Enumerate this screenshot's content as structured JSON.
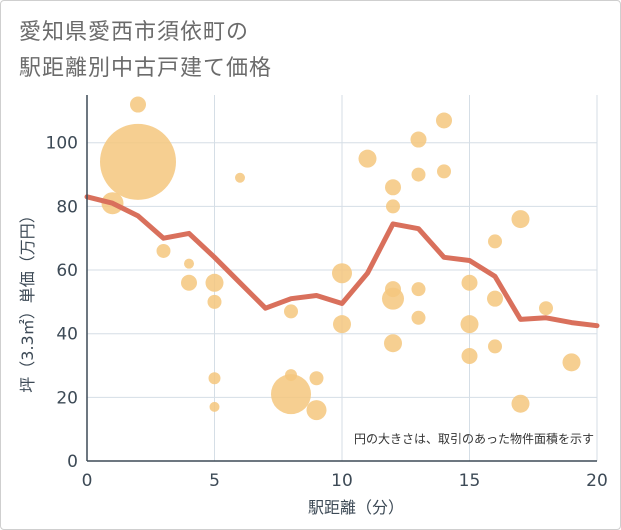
{
  "title_line1": "愛知県愛西市須依町の",
  "title_line2": "駅距離別中古戸建て価格",
  "chart_data": {
    "type": "scatter",
    "xlabel": "駅距離（分）",
    "ylabel": "坪（3.3㎡）単価（万円）",
    "xlim": [
      0,
      20
    ],
    "ylim": [
      0,
      115
    ],
    "xticks": [
      0,
      5,
      10,
      15,
      20
    ],
    "yticks": [
      0,
      20,
      40,
      60,
      80,
      100
    ],
    "grid": true,
    "annotation": "円の大きさは、取引のあった物件面積を示す",
    "colors": {
      "bubble": "#f5c77e",
      "line": "#d9705c",
      "grid": "#d5dee6",
      "axis": "#3d4a56"
    },
    "bubbles": [
      {
        "x": 1,
        "y": 81,
        "size": 11
      },
      {
        "x": 2,
        "y": 112,
        "size": 8
      },
      {
        "x": 2,
        "y": 94,
        "size": 38
      },
      {
        "x": 3,
        "y": 66,
        "size": 7
      },
      {
        "x": 4,
        "y": 62,
        "size": 5
      },
      {
        "x": 4,
        "y": 56,
        "size": 8
      },
      {
        "x": 5,
        "y": 56,
        "size": 9
      },
      {
        "x": 5,
        "y": 50,
        "size": 7
      },
      {
        "x": 5,
        "y": 26,
        "size": 6
      },
      {
        "x": 5,
        "y": 17,
        "size": 5
      },
      {
        "x": 6,
        "y": 89,
        "size": 5
      },
      {
        "x": 8,
        "y": 47,
        "size": 7
      },
      {
        "x": 8,
        "y": 27,
        "size": 6
      },
      {
        "x": 8,
        "y": 21,
        "size": 20
      },
      {
        "x": 9,
        "y": 26,
        "size": 7
      },
      {
        "x": 9,
        "y": 16,
        "size": 10
      },
      {
        "x": 10,
        "y": 59,
        "size": 10
      },
      {
        "x": 10,
        "y": 43,
        "size": 9
      },
      {
        "x": 11,
        "y": 95,
        "size": 9
      },
      {
        "x": 12,
        "y": 86,
        "size": 8
      },
      {
        "x": 12,
        "y": 80,
        "size": 7
      },
      {
        "x": 12,
        "y": 54,
        "size": 8
      },
      {
        "x": 12,
        "y": 51,
        "size": 11
      },
      {
        "x": 12,
        "y": 37,
        "size": 9
      },
      {
        "x": 13,
        "y": 101,
        "size": 8
      },
      {
        "x": 13,
        "y": 90,
        "size": 7
      },
      {
        "x": 13,
        "y": 54,
        "size": 7
      },
      {
        "x": 13,
        "y": 45,
        "size": 7
      },
      {
        "x": 14,
        "y": 107,
        "size": 8
      },
      {
        "x": 14,
        "y": 91,
        "size": 7
      },
      {
        "x": 15,
        "y": 56,
        "size": 8
      },
      {
        "x": 15,
        "y": 43,
        "size": 9
      },
      {
        "x": 15,
        "y": 33,
        "size": 8
      },
      {
        "x": 16,
        "y": 69,
        "size": 7
      },
      {
        "x": 16,
        "y": 51,
        "size": 8
      },
      {
        "x": 16,
        "y": 36,
        "size": 7
      },
      {
        "x": 17,
        "y": 76,
        "size": 9
      },
      {
        "x": 17,
        "y": 18,
        "size": 9
      },
      {
        "x": 18,
        "y": 48,
        "size": 7
      },
      {
        "x": 19,
        "y": 31,
        "size": 9
      }
    ],
    "trend": {
      "x": [
        0,
        1,
        2,
        3,
        4,
        5,
        6,
        7,
        8,
        9,
        10,
        11,
        12,
        13,
        14,
        15,
        16,
        17,
        18,
        19,
        20
      ],
      "y": [
        83,
        81,
        77,
        70,
        71.5,
        64,
        56,
        48,
        51,
        52,
        49.5,
        59,
        74.5,
        73,
        64,
        63,
        58,
        44.5,
        45,
        43.5,
        42.5
      ]
    }
  }
}
